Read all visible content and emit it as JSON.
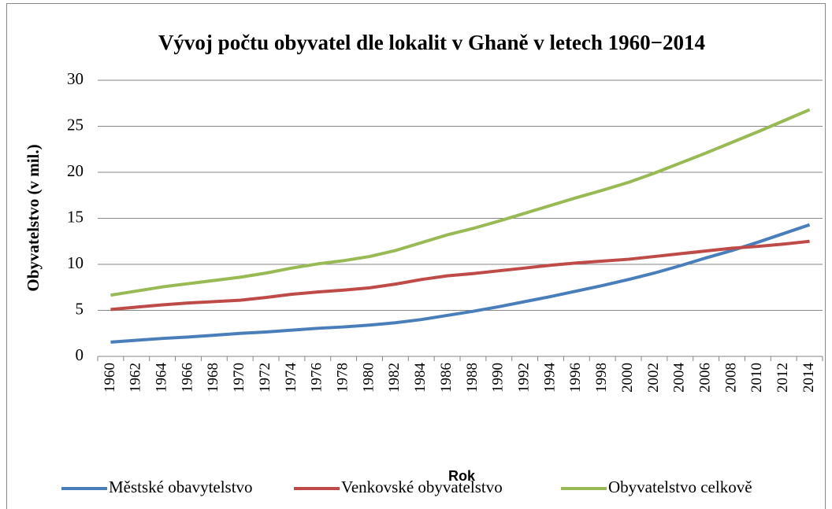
{
  "chart_data": {
    "type": "line",
    "title": "Vývoj počtu obyvatel dle lokalit v Ghaně v letech 1960−2014",
    "x_label": "Rok",
    "y_label": "Obyvatelstvo (v mil.)",
    "categories": [
      "1960",
      "1962",
      "1964",
      "1966",
      "1968",
      "1970",
      "1972",
      "1974",
      "1976",
      "1978",
      "1980",
      "1982",
      "1984",
      "1986",
      "1988",
      "1990",
      "1992",
      "1994",
      "1996",
      "1998",
      "2000",
      "2002",
      "2004",
      "2006",
      "2008",
      "2010",
      "2012",
      "2014"
    ],
    "series": [
      {
        "name": "Městské obavytelstvo",
        "color": "#4a7ebb",
        "values": [
          1.55,
          1.75,
          1.95,
          2.1,
          2.3,
          2.5,
          2.65,
          2.85,
          3.05,
          3.2,
          3.4,
          3.65,
          4.0,
          4.45,
          4.9,
          5.4,
          5.95,
          6.5,
          7.1,
          7.7,
          8.35,
          9.05,
          9.85,
          10.7,
          11.5,
          12.4,
          13.35,
          14.3
        ]
      },
      {
        "name": "Venkovské obyvatelstvo",
        "color": "#be4b48",
        "values": [
          5.1,
          5.35,
          5.6,
          5.8,
          5.95,
          6.1,
          6.4,
          6.75,
          7.0,
          7.2,
          7.45,
          7.85,
          8.35,
          8.75,
          9.0,
          9.3,
          9.6,
          9.9,
          10.15,
          10.35,
          10.55,
          10.85,
          11.15,
          11.45,
          11.75,
          11.95,
          12.2,
          12.5
        ]
      },
      {
        "name": "Obyvatelstvo celkově",
        "color": "#98b954",
        "values": [
          6.65,
          7.1,
          7.55,
          7.9,
          8.25,
          8.6,
          9.05,
          9.6,
          10.05,
          10.4,
          10.85,
          11.5,
          12.35,
          13.2,
          13.9,
          14.7,
          15.55,
          16.4,
          17.25,
          18.05,
          18.9,
          19.9,
          21.0,
          22.1,
          23.25,
          24.4,
          25.6,
          26.8
        ]
      }
    ],
    "ylim": [
      0,
      30
    ],
    "yticks": [
      0,
      5,
      10,
      15,
      20,
      25,
      30
    ],
    "grid": true,
    "legend": "bottom"
  }
}
